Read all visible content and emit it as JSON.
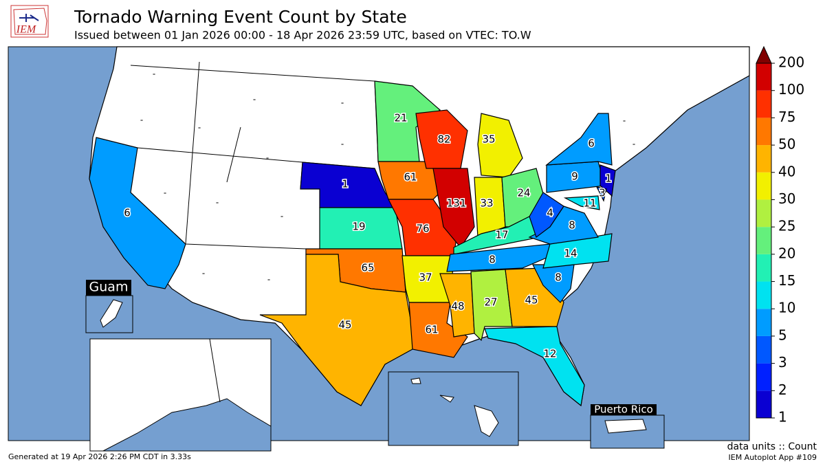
{
  "header": {
    "logo": "IEM",
    "title": "Tornado Warning Event Count by State",
    "subtitle": "Issued between 01 Jan 2026 00:00 - 18 Apr 2026 23:59 UTC, based on VTEC: TO.W"
  },
  "state_counts": [
    6,
    1,
    19,
    65,
    45,
    21,
    61,
    76,
    37,
    61,
    82,
    131,
    35,
    33,
    24,
    17,
    8,
    48,
    27,
    45,
    12,
    8,
    14,
    8,
    4,
    9,
    6,
    1,
    3,
    11
  ],
  "no_data_label": "-",
  "insets": {
    "guam": "Guam",
    "puerto_rico": "Puerto Rico"
  },
  "colorbar": {
    "levels": [
      1,
      2,
      3,
      5,
      10,
      15,
      20,
      25,
      30,
      40,
      50,
      75,
      100,
      200
    ],
    "colors": [
      "#0a00d2",
      "#0020ff",
      "#0058ff",
      "#009cff",
      "#00e2f0",
      "#22f0b4",
      "#64f07c",
      "#b0f040",
      "#f2f000",
      "#ffb400",
      "#ff7800",
      "#ff3000",
      "#d20000"
    ],
    "over_color": "#800000"
  },
  "footer": {
    "generated": "Generated at 19 Apr 2026 2:26 PM CDT in 3.33s",
    "units": "data units :: Count",
    "app": "IEM Autoplot App #109"
  }
}
